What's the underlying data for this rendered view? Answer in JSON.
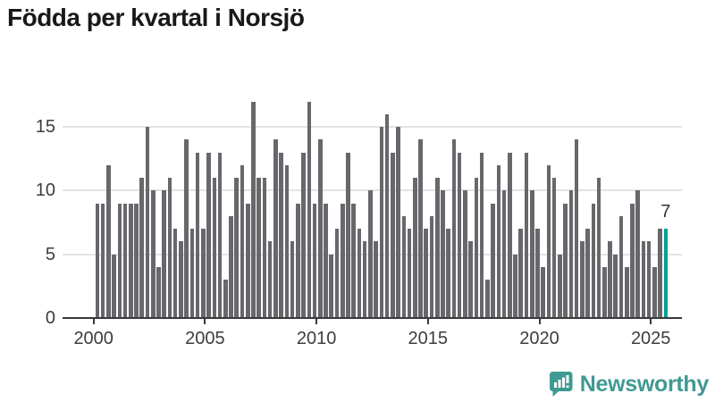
{
  "title": "Födda per kvartal i Norsjö",
  "annotation": {
    "value": "7"
  },
  "logo": {
    "text": "Newsworthy",
    "color": "#3f9a92",
    "icon": "newsworthy-speech-bubble-chart-icon"
  },
  "colors": {
    "bar": "#67676c",
    "highlight": "#00a09a",
    "grid": "#e3e3e3",
    "axis": "#3a3a3a",
    "tick_label": "#3d3d3d",
    "title": "#191919",
    "background": "#ffffff"
  },
  "chart_data": {
    "type": "bar",
    "title": "Födda per kvartal i Norsjö",
    "xlabel": "",
    "ylabel": "",
    "x_unit": "quarter",
    "period_start": "2000-Q1",
    "period_end": "2025-Q3",
    "y_ticks": [
      0,
      5,
      10,
      15
    ],
    "x_tick_years": [
      "2000",
      "2005",
      "2010",
      "2015",
      "2020",
      "2025"
    ],
    "ylim": [
      0,
      17.5
    ],
    "grid": "horizontal",
    "legend": "none",
    "data_by_year": [
      {
        "year": 2000,
        "values": [
          9,
          9,
          12,
          5
        ]
      },
      {
        "year": 2001,
        "values": [
          9,
          9,
          9,
          9
        ]
      },
      {
        "year": 2002,
        "values": [
          11,
          15,
          10,
          4
        ]
      },
      {
        "year": 2003,
        "values": [
          10,
          11,
          7,
          6
        ]
      },
      {
        "year": 2004,
        "values": [
          14,
          7,
          13,
          7
        ]
      },
      {
        "year": 2005,
        "values": [
          13,
          11,
          13,
          3
        ]
      },
      {
        "year": 2006,
        "values": [
          8,
          11,
          12,
          9
        ]
      },
      {
        "year": 2007,
        "values": [
          17,
          11,
          11,
          6
        ]
      },
      {
        "year": 2008,
        "values": [
          14,
          13,
          12,
          6
        ]
      },
      {
        "year": 2009,
        "values": [
          9,
          13,
          17,
          9
        ]
      },
      {
        "year": 2010,
        "values": [
          14,
          9,
          5,
          7
        ]
      },
      {
        "year": 2011,
        "values": [
          9,
          13,
          9,
          7
        ]
      },
      {
        "year": 2012,
        "values": [
          6,
          10,
          6,
          15
        ]
      },
      {
        "year": 2013,
        "values": [
          16,
          13,
          15,
          8
        ]
      },
      {
        "year": 2014,
        "values": [
          7,
          11,
          14,
          7
        ]
      },
      {
        "year": 2015,
        "values": [
          8,
          11,
          10,
          7
        ]
      },
      {
        "year": 2016,
        "values": [
          14,
          13,
          10,
          6
        ]
      },
      {
        "year": 2017,
        "values": [
          11,
          13,
          3,
          9
        ]
      },
      {
        "year": 2018,
        "values": [
          12,
          10,
          13,
          5
        ]
      },
      {
        "year": 2019,
        "values": [
          7,
          13,
          10,
          7
        ]
      },
      {
        "year": 2020,
        "values": [
          4,
          12,
          11,
          5
        ]
      },
      {
        "year": 2021,
        "values": [
          9,
          10,
          14,
          6
        ]
      },
      {
        "year": 2022,
        "values": [
          7,
          9,
          11,
          4
        ]
      },
      {
        "year": 2023,
        "values": [
          6,
          5,
          8,
          4
        ]
      },
      {
        "year": 2024,
        "values": [
          9,
          10,
          6,
          6
        ]
      },
      {
        "year": 2025,
        "values": [
          4,
          7,
          7
        ]
      }
    ],
    "highlight": {
      "category": "2025-Q3",
      "value": 7,
      "label": "7"
    }
  }
}
